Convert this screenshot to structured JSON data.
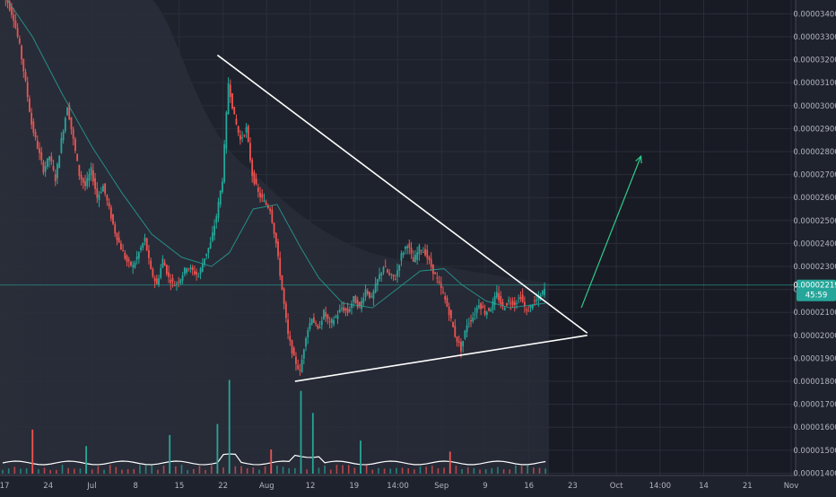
{
  "chart_data": {
    "type": "candlestick",
    "price_axis_ticks": [
      "0.00003400",
      "0.00003300",
      "0.00003200",
      "0.00003100",
      "0.00003000",
      "0.00002900",
      "0.00002800",
      "0.00002700",
      "0.00002600",
      "0.00002500",
      "0.00002400",
      "0.00002300",
      "0.00002200",
      "0.00002100",
      "0.00002000",
      "0.00001900",
      "0.00001800",
      "0.00001700",
      "0.00001600",
      "0.00001500",
      "0.00001400"
    ],
    "time_axis_ticks": [
      "17",
      "24",
      "Jul",
      "8",
      "15",
      "22",
      "Aug",
      "12",
      "19",
      "14:00",
      "Sep",
      "9",
      "16",
      "23",
      "Oct",
      "14:00",
      "14",
      "21",
      "Nov"
    ],
    "ylim": [
      1.39e-05,
      3.46e-05
    ],
    "last_price": {
      "label": "0.00002219",
      "countdown": "45:59",
      "value": 2.219e-05
    },
    "close_path": [
      [
        0,
        3.48e-05
      ],
      [
        1,
        3.45e-05
      ],
      [
        2,
        3.38e-05
      ],
      [
        3,
        3.26e-05
      ],
      [
        4,
        3.1e-05
      ],
      [
        5,
        2.92e-05
      ],
      [
        6,
        2.82e-05
      ],
      [
        7,
        2.72e-05
      ],
      [
        8,
        2.78e-05
      ],
      [
        9,
        2.68e-05
      ],
      [
        10,
        2.85e-05
      ],
      [
        11,
        3e-05
      ],
      [
        12,
        2.85e-05
      ],
      [
        13,
        2.7e-05
      ],
      [
        14,
        2.65e-05
      ],
      [
        15,
        2.72e-05
      ],
      [
        16,
        2.6e-05
      ],
      [
        17,
        2.65e-05
      ],
      [
        18,
        2.55e-05
      ],
      [
        19,
        2.45e-05
      ],
      [
        20,
        2.38e-05
      ],
      [
        21,
        2.32e-05
      ],
      [
        22,
        2.3e-05
      ],
      [
        23,
        2.36e-05
      ],
      [
        24,
        2.42e-05
      ],
      [
        25,
        2.28e-05
      ],
      [
        26,
        2.22e-05
      ],
      [
        27,
        2.33e-05
      ],
      [
        28,
        2.25e-05
      ],
      [
        29,
        2.22e-05
      ],
      [
        30,
        2.25e-05
      ],
      [
        31,
        2.3e-05
      ],
      [
        32,
        2.28e-05
      ],
      [
        33,
        2.26e-05
      ],
      [
        34,
        2.34e-05
      ],
      [
        35,
        2.4e-05
      ],
      [
        36,
        2.52e-05
      ],
      [
        37,
        2.68e-05
      ],
      [
        38,
        3.1e-05
      ],
      [
        39,
        2.95e-05
      ],
      [
        40,
        2.85e-05
      ],
      [
        41,
        2.9e-05
      ],
      [
        42,
        2.7e-05
      ],
      [
        43,
        2.62e-05
      ],
      [
        44,
        2.58e-05
      ],
      [
        45,
        2.55e-05
      ],
      [
        46,
        2.4e-05
      ],
      [
        47,
        2.2e-05
      ],
      [
        48,
        2e-05
      ],
      [
        49,
        1.9e-05
      ],
      [
        50,
        1.84e-05
      ],
      [
        51,
        2e-05
      ],
      [
        52,
        2.08e-05
      ],
      [
        53,
        2.02e-05
      ],
      [
        54,
        2.1e-05
      ],
      [
        55,
        2.05e-05
      ],
      [
        56,
        2.08e-05
      ],
      [
        57,
        2.12e-05
      ],
      [
        58,
        2.1e-05
      ],
      [
        59,
        2.16e-05
      ],
      [
        60,
        2.12e-05
      ],
      [
        61,
        2.2e-05
      ],
      [
        62,
        2.16e-05
      ],
      [
        63,
        2.24e-05
      ],
      [
        64,
        2.3e-05
      ],
      [
        65,
        2.26e-05
      ],
      [
        66,
        2.25e-05
      ],
      [
        67,
        2.35e-05
      ],
      [
        68,
        2.4e-05
      ],
      [
        69,
        2.32e-05
      ],
      [
        70,
        2.38e-05
      ],
      [
        71,
        2.36e-05
      ],
      [
        72,
        2.3e-05
      ],
      [
        73,
        2.24e-05
      ],
      [
        74,
        2.18e-05
      ],
      [
        75,
        2.1e-05
      ],
      [
        76,
        2e-05
      ],
      [
        77,
        1.94e-05
      ],
      [
        78,
        2.05e-05
      ],
      [
        79,
        2.08e-05
      ],
      [
        80,
        2.14e-05
      ],
      [
        81,
        2.1e-05
      ],
      [
        82,
        2.12e-05
      ],
      [
        83,
        2.18e-05
      ],
      [
        84,
        2.12e-05
      ],
      [
        85,
        2.15e-05
      ],
      [
        86,
        2.14e-05
      ],
      [
        87,
        2.17e-05
      ],
      [
        88,
        2.1e-05
      ],
      [
        89,
        2.14e-05
      ],
      [
        90,
        2.16e-05
      ],
      [
        91,
        2.2e-05
      ]
    ],
    "ma_path": [
      [
        0,
        3.49e-05
      ],
      [
        5,
        3.3e-05
      ],
      [
        10,
        3.05e-05
      ],
      [
        15,
        2.82e-05
      ],
      [
        20,
        2.62e-05
      ],
      [
        25,
        2.44e-05
      ],
      [
        30,
        2.34e-05
      ],
      [
        35,
        2.3e-05
      ],
      [
        38,
        2.36e-05
      ],
      [
        42,
        2.55e-05
      ],
      [
        46,
        2.57e-05
      ],
      [
        50,
        2.38e-05
      ],
      [
        53,
        2.25e-05
      ],
      [
        57,
        2.14e-05
      ],
      [
        62,
        2.12e-05
      ],
      [
        66,
        2.2e-05
      ],
      [
        70,
        2.28e-05
      ],
      [
        74,
        2.29e-05
      ],
      [
        77,
        2.22e-05
      ],
      [
        81,
        2.15e-05
      ],
      [
        85,
        2.12e-05
      ],
      [
        91,
        2.14e-05
      ]
    ],
    "volume_bars": [
      {
        "i": 38,
        "h": 0.85
      },
      {
        "i": 50,
        "h": 0.75
      },
      {
        "i": 52,
        "h": 0.55
      },
      {
        "i": 36,
        "h": 0.45
      },
      {
        "i": 60,
        "h": 0.3
      },
      {
        "i": 5,
        "h": 0.4
      },
      {
        "i": 28,
        "h": 0.35
      },
      {
        "i": 14,
        "h": 0.25
      },
      {
        "i": 45,
        "h": 0.22
      },
      {
        "i": 75,
        "h": 0.2
      }
    ],
    "triangle_upper": [
      [
        36,
        3.22e-05
      ],
      [
        98,
        2.01e-05
      ]
    ],
    "triangle_lower": [
      [
        49,
        1.8e-05
      ],
      [
        98,
        2e-05
      ]
    ],
    "forecast_arrow": [
      [
        97,
        2.12e-05
      ],
      [
        107,
        2.78e-05
      ]
    ],
    "colors": {
      "background": "#1e222d",
      "future_area": "#1a1d26",
      "up_candle": "#26a69a",
      "down_candle": "#ef5350",
      "ma_line": "#26a69a",
      "trendline": "#ffffff",
      "arrow": "#2ecc8a",
      "price_label_bg": "#26a69a",
      "axis_text": "#b2b5be",
      "grid": "#2a2e39",
      "volume_area": "#ffffff"
    }
  }
}
